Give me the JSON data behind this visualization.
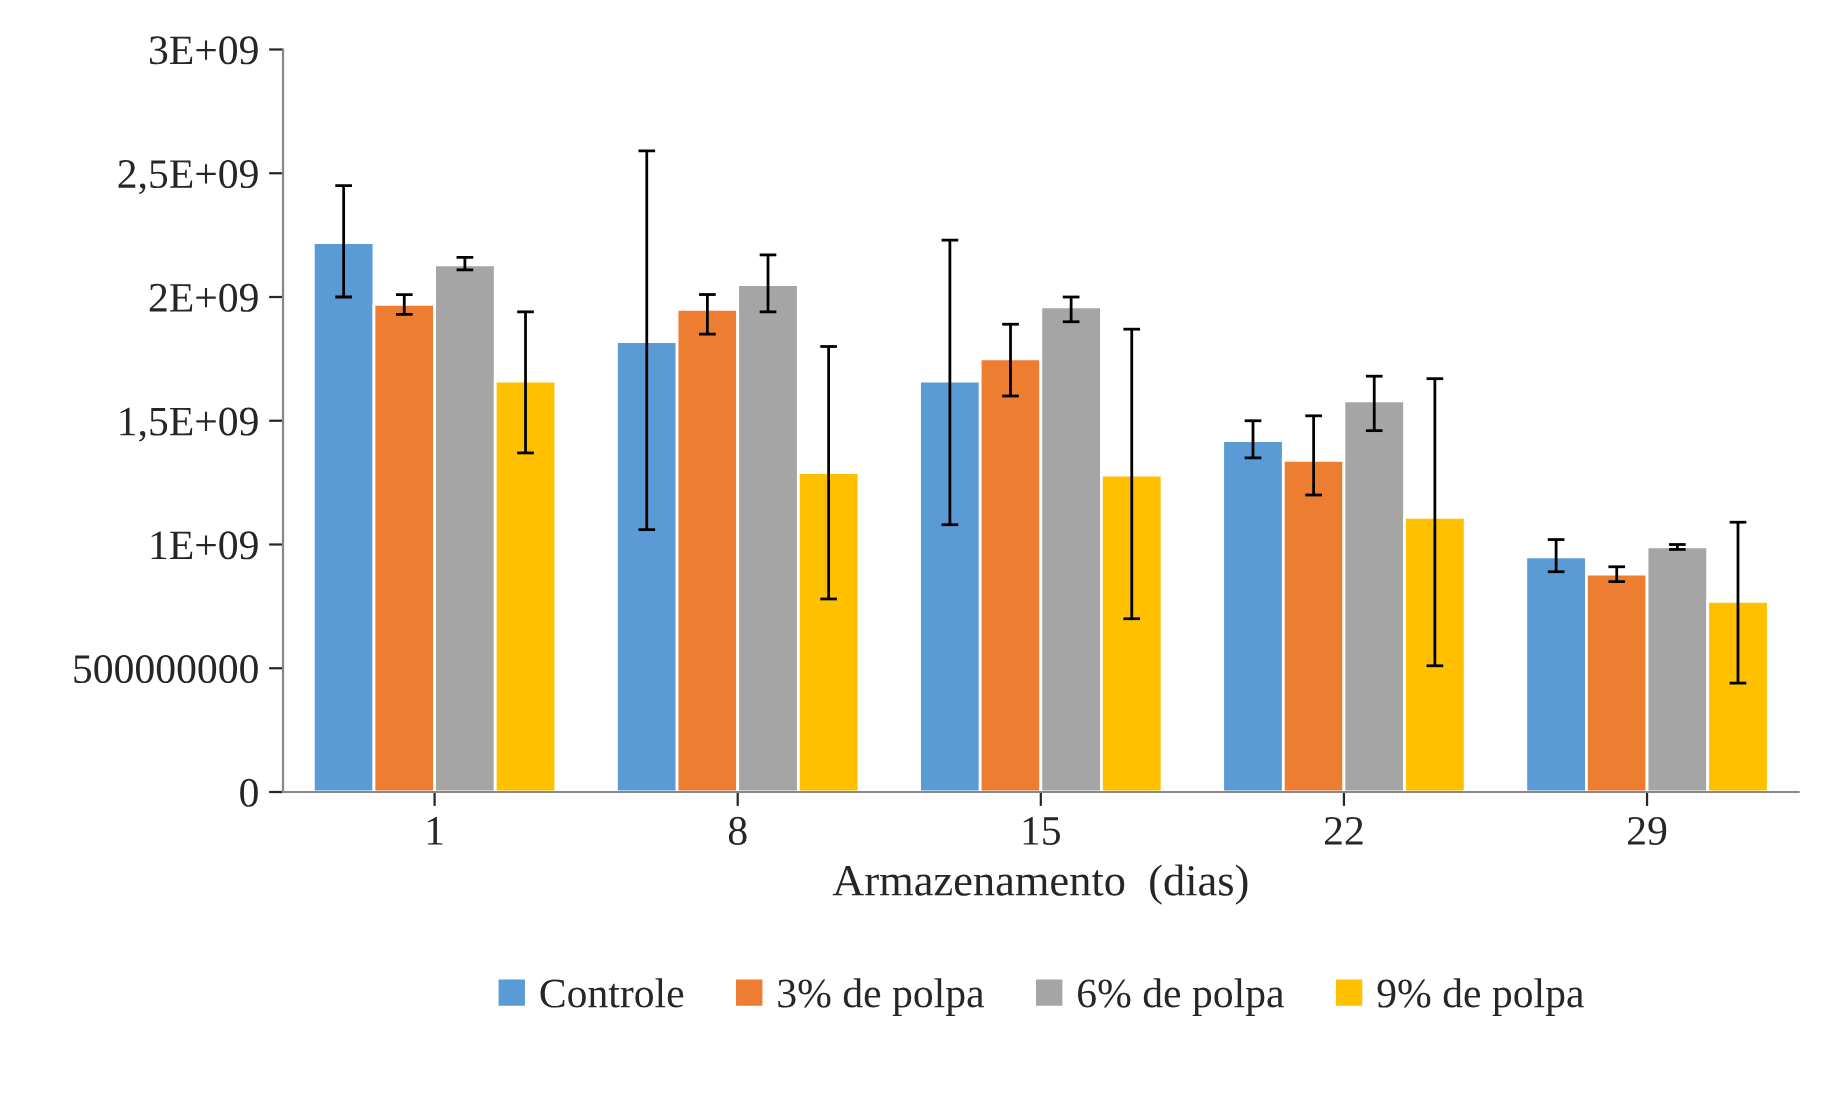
{
  "chart_data": {
    "type": "bar",
    "xlabel": "Armazenamento  (dias)",
    "categories": [
      "1",
      "8",
      "15",
      "22",
      "29"
    ],
    "series": [
      {
        "name": "Controle",
        "color": "#5b9bd5",
        "values": [
          2220000000,
          1820000000,
          1660000000,
          1420000000,
          950000000
        ],
        "errors": [
          [
            2000000000,
            2450000000
          ],
          [
            1060000000,
            2590000000
          ],
          [
            1080000000,
            2230000000
          ],
          [
            1350000000,
            1500000000
          ],
          [
            890000000,
            1020000000
          ]
        ]
      },
      {
        "name": "3% de polpa",
        "color": "#ed7d31",
        "values": [
          1970000000,
          1950000000,
          1750000000,
          1340000000,
          880000000
        ],
        "errors": [
          [
            1930000000,
            2010000000
          ],
          [
            1850000000,
            2010000000
          ],
          [
            1600000000,
            1890000000
          ],
          [
            1200000000,
            1520000000
          ],
          [
            850000000,
            910000000
          ]
        ]
      },
      {
        "name": "6% de polpa",
        "color": "#a5a5a5",
        "values": [
          2130000000,
          2050000000,
          1960000000,
          1580000000,
          990000000
        ],
        "errors": [
          [
            2110000000,
            2160000000
          ],
          [
            1940000000,
            2170000000
          ],
          [
            1900000000,
            2000000000
          ],
          [
            1460000000,
            1680000000
          ],
          [
            980000000,
            1000000000
          ]
        ]
      },
      {
        "name": "9% de polpa",
        "color": "#ffc000",
        "values": [
          1660000000,
          1290000000,
          1280000000,
          1110000000,
          770000000
        ],
        "errors": [
          [
            1370000000,
            1940000000
          ],
          [
            780000000,
            1800000000
          ],
          [
            700000000,
            1870000000
          ],
          [
            510000000,
            1670000000
          ],
          [
            440000000,
            1090000000
          ]
        ]
      }
    ],
    "ylim": [
      0,
      3000000000
    ],
    "yticks": [
      {
        "value": 0,
        "label": "0"
      },
      {
        "value": 500000000,
        "label": "500000000"
      },
      {
        "value": 1000000000,
        "label": "1E+09"
      },
      {
        "value": 1500000000,
        "label": "1,5E+09"
      },
      {
        "value": 2000000000,
        "label": "2E+09"
      },
      {
        "value": 2500000000,
        "label": "2,5E+09"
      },
      {
        "value": 3000000000,
        "label": "3E+09"
      }
    ],
    "grid": false,
    "legend": "bottom"
  }
}
